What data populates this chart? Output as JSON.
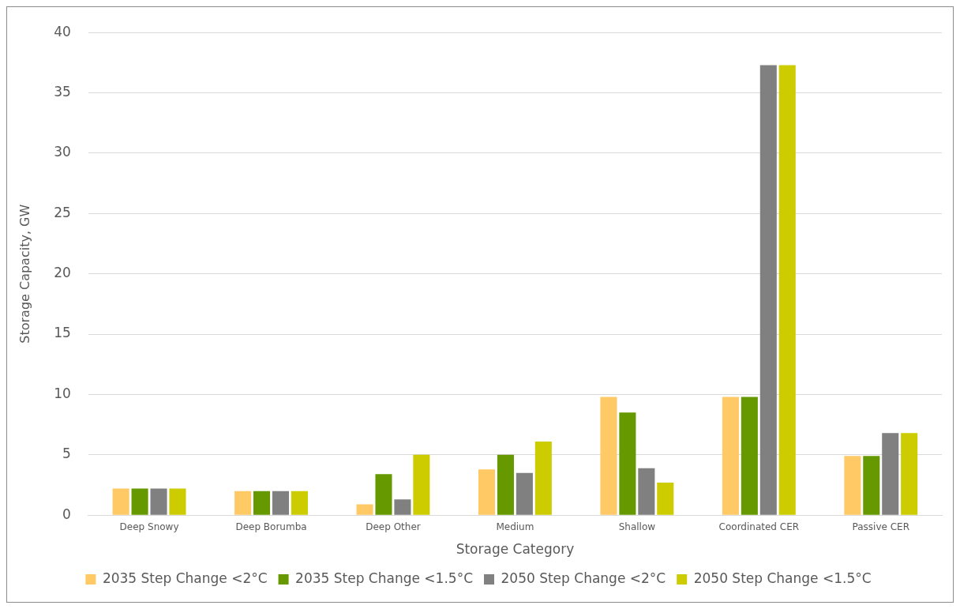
{
  "chart_data": {
    "type": "bar",
    "xlabel": "Storage Category",
    "ylabel": "Storage Capacity, GW",
    "categories": [
      "Deep Snowy",
      "Deep Borumba",
      "Deep Other",
      "Medium",
      "Shallow",
      "Coordinated CER",
      "Passive CER"
    ],
    "series": [
      {
        "name": "2035 Step Change <2°C",
        "color": "#ffc966",
        "values": [
          2.2,
          2.0,
          0.9,
          3.8,
          9.8,
          9.8,
          4.9
        ]
      },
      {
        "name": "2035 Step Change <1.5°C",
        "color": "#669900",
        "values": [
          2.2,
          2.0,
          3.4,
          5.0,
          8.5,
          9.8,
          4.9
        ]
      },
      {
        "name": "2050 Step Change <2°C",
        "color": "#808080",
        "values": [
          2.2,
          2.0,
          1.3,
          3.5,
          3.9,
          37.3,
          6.8
        ]
      },
      {
        "name": "2050 Step Change <1.5°C",
        "color": "#cccc00",
        "values": [
          2.2,
          2.0,
          5.0,
          6.1,
          2.7,
          37.3,
          6.8
        ]
      }
    ],
    "ylim": [
      0,
      40
    ],
    "yticks": [
      0,
      5,
      10,
      15,
      20,
      25,
      30,
      35,
      40
    ],
    "grid": "y",
    "legend": "bottom"
  }
}
